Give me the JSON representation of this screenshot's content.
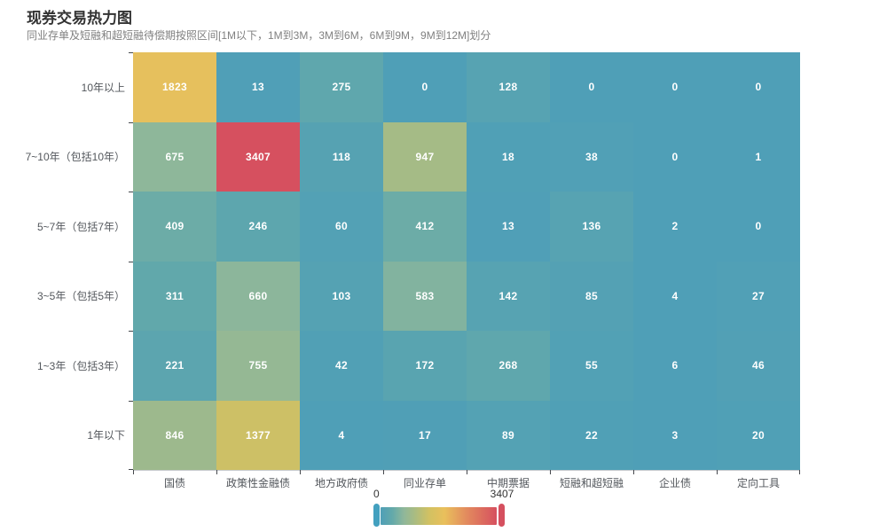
{
  "header": {
    "title": "现券交易热力图",
    "subtitle": "同业存单及短融和超短融待偿期按照区间[1M以下，1M到3M，3M到6M，6M到9M，9M到12M]划分"
  },
  "chart_data": {
    "type": "heatmap",
    "title": "现券交易热力图",
    "subtitle": "同业存单及短融和超短融待偿期按照区间[1M以下，1M到3M，3M到6M，6M到9M，9M到12M]划分",
    "x_categories": [
      "国债",
      "政策性金融债",
      "地方政府债",
      "同业存单",
      "中期票据",
      "短融和超短融",
      "企业债",
      "定向工具"
    ],
    "y_categories_top_to_bottom": [
      "10年以上",
      "7~10年（包括10年）",
      "5~7年（包括7年）",
      "3~5年（包括5年）",
      "1~3年（包括3年）",
      "1年以下"
    ],
    "rows_top_to_bottom": [
      [
        1823,
        13,
        275,
        0,
        128,
        0,
        0,
        0
      ],
      [
        675,
        3407,
        118,
        947,
        18,
        38,
        0,
        1
      ],
      [
        409,
        246,
        60,
        412,
        13,
        136,
        2,
        0
      ],
      [
        311,
        660,
        103,
        583,
        142,
        85,
        4,
        27
      ],
      [
        221,
        755,
        42,
        172,
        268,
        55,
        6,
        46
      ],
      [
        846,
        1377,
        4,
        17,
        89,
        22,
        3,
        20
      ]
    ],
    "cell_label_color": "#ffffff",
    "visual_map": {
      "min": 0,
      "max": 3407,
      "min_label": "0",
      "max_label": "3407",
      "orientation": "horizontal",
      "gradient_stops": [
        [
          0.0,
          "#4F9FB7"
        ],
        [
          0.1,
          "#63A9AA"
        ],
        [
          0.2,
          "#8FB79A"
        ],
        [
          0.3,
          "#ABBC80"
        ],
        [
          0.42,
          "#D2C162"
        ],
        [
          0.55,
          "#E9C05C"
        ],
        [
          0.75,
          "#E2885E"
        ],
        [
          1.0,
          "#D6505F"
        ]
      ],
      "handle_min_color": "#43A0BF",
      "handle_max_color": "#D5505F"
    },
    "legend_position": "bottom-center",
    "grid": false
  }
}
